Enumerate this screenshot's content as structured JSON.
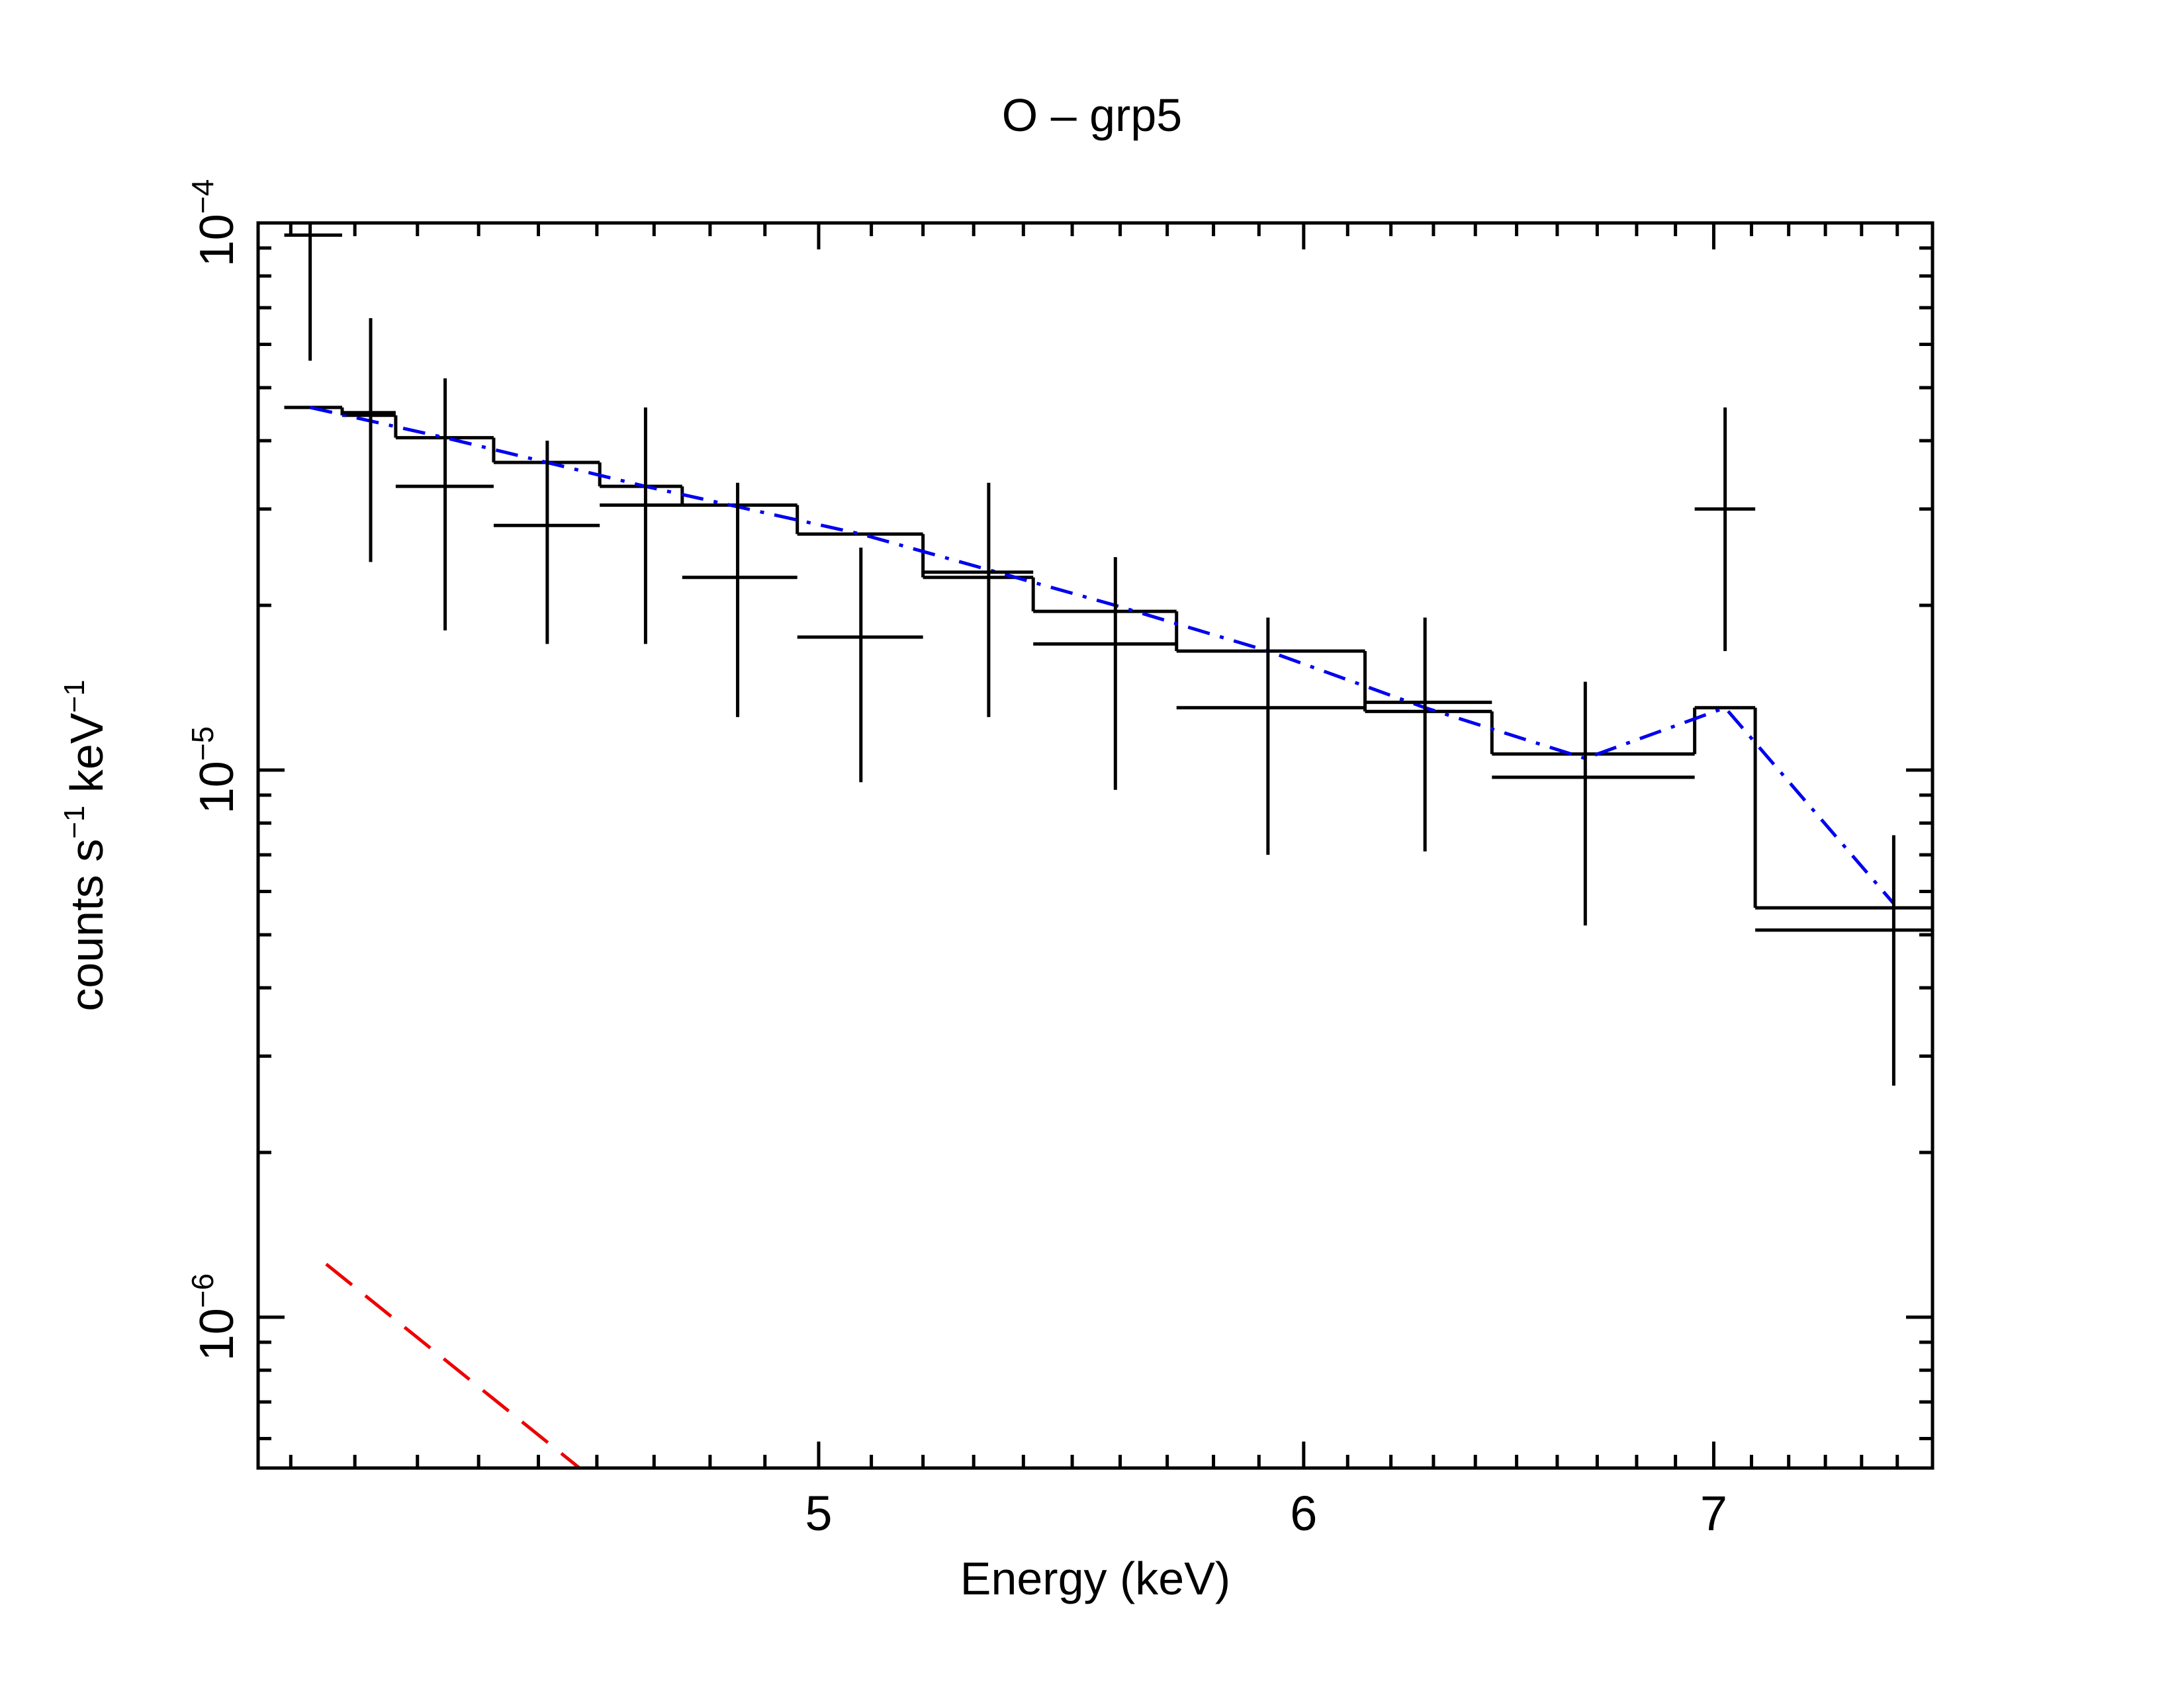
{
  "chart_data": {
    "type": "line",
    "title": "O – grp5",
    "xlabel": "Energy (keV)",
    "ylabel": {
      "parts": [
        "counts s",
        "−1",
        " keV",
        "−1"
      ]
    },
    "x_scale": "log",
    "y_scale": "log",
    "xlim": [
      4.05,
      7.6
    ],
    "ylim": [
      5.3e-07,
      0.0001
    ],
    "x_ticks": [
      {
        "value": 5,
        "label": "5"
      },
      {
        "value": 6,
        "label": "6"
      },
      {
        "value": 7,
        "label": "7"
      }
    ],
    "y_ticks": [
      {
        "value": 0.0001,
        "base": "10",
        "exp": "−4"
      },
      {
        "value": 1e-05,
        "base": "10",
        "exp": "−5"
      },
      {
        "value": 1e-06,
        "base": "10",
        "exp": "−6"
      }
    ],
    "data_points": {
      "name": "data",
      "color": "#000000",
      "points": [
        {
          "x": 4.13,
          "xlo": 4.09,
          "xhi": 4.18,
          "y": 9.5e-05,
          "ylo": 5.6e-05,
          "yhi": 0.0001
        },
        {
          "x": 4.225,
          "xlo": 4.18,
          "xhi": 4.265,
          "y": 4.5e-05,
          "ylo": 2.4e-05,
          "yhi": 6.7e-05
        },
        {
          "x": 4.345,
          "xlo": 4.265,
          "xhi": 4.425,
          "y": 3.3e-05,
          "ylo": 1.8e-05,
          "yhi": 5.2e-05
        },
        {
          "x": 4.515,
          "xlo": 4.425,
          "xhi": 4.605,
          "y": 2.8e-05,
          "ylo": 1.7e-05,
          "yhi": 4e-05
        },
        {
          "x": 4.685,
          "xlo": 4.605,
          "xhi": 4.75,
          "y": 3.05e-05,
          "ylo": 1.7e-05,
          "yhi": 4.6e-05
        },
        {
          "x": 4.85,
          "xlo": 4.75,
          "xhi": 4.96,
          "y": 2.25e-05,
          "ylo": 1.25e-05,
          "yhi": 3.35e-05
        },
        {
          "x": 5.08,
          "xlo": 4.96,
          "xhi": 5.2,
          "y": 1.75e-05,
          "ylo": 9.5e-06,
          "yhi": 2.55e-05
        },
        {
          "x": 5.33,
          "xlo": 5.2,
          "xhi": 5.42,
          "y": 2.3e-05,
          "ylo": 1.25e-05,
          "yhi": 3.35e-05
        },
        {
          "x": 5.59,
          "xlo": 5.42,
          "xhi": 5.72,
          "y": 1.7e-05,
          "ylo": 9.2e-06,
          "yhi": 2.45e-05
        },
        {
          "x": 5.92,
          "xlo": 5.72,
          "xhi": 6.14,
          "y": 1.3e-05,
          "ylo": 7e-06,
          "yhi": 1.9e-05
        },
        {
          "x": 6.28,
          "xlo": 6.14,
          "xhi": 6.44,
          "y": 1.33e-05,
          "ylo": 7.1e-06,
          "yhi": 1.9e-05
        },
        {
          "x": 6.67,
          "xlo": 6.44,
          "xhi": 6.95,
          "y": 9.7e-06,
          "ylo": 5.2e-06,
          "yhi": 1.45e-05
        },
        {
          "x": 7.03,
          "xlo": 6.95,
          "xhi": 7.11,
          "y": 3e-05,
          "ylo": 1.65e-05,
          "yhi": 4.6e-05
        },
        {
          "x": 7.49,
          "xlo": 7.11,
          "xhi": 7.88,
          "y": 5.1e-06,
          "ylo": 2.65e-06,
          "yhi": 7.6e-06
        }
      ]
    },
    "folded_model": {
      "name": "total model (histogram)",
      "color": "#000000",
      "style": "step",
      "bins": [
        {
          "xlo": 4.09,
          "xhi": 4.18,
          "y": 4.6e-05
        },
        {
          "xlo": 4.18,
          "xhi": 4.265,
          "y": 4.45e-05
        },
        {
          "xlo": 4.265,
          "xhi": 4.425,
          "y": 4.05e-05
        },
        {
          "xlo": 4.425,
          "xhi": 4.605,
          "y": 3.65e-05
        },
        {
          "xlo": 4.605,
          "xhi": 4.75,
          "y": 3.3e-05
        },
        {
          "xlo": 4.75,
          "xhi": 4.96,
          "y": 3.05e-05
        },
        {
          "xlo": 4.96,
          "xhi": 5.2,
          "y": 2.7e-05
        },
        {
          "xlo": 5.2,
          "xhi": 5.42,
          "y": 2.25e-05
        },
        {
          "xlo": 5.42,
          "xhi": 5.72,
          "y": 1.95e-05
        },
        {
          "xlo": 5.72,
          "xhi": 6.14,
          "y": 1.65e-05
        },
        {
          "xlo": 6.14,
          "xhi": 6.44,
          "y": 1.28e-05
        },
        {
          "xlo": 6.44,
          "xhi": 6.95,
          "y": 1.07e-05
        },
        {
          "xlo": 6.95,
          "xhi": 7.11,
          "y": 1.3e-05
        },
        {
          "xlo": 7.11,
          "xhi": 7.88,
          "y": 5.6e-06
        }
      ]
    },
    "components": [
      {
        "name": "component 1",
        "color": "#0000ee",
        "style": "dash-dot",
        "points": [
          {
            "x": 4.13,
            "y": 4.6e-05
          },
          {
            "x": 4.345,
            "y": 4.05e-05
          },
          {
            "x": 4.685,
            "y": 3.3e-05
          },
          {
            "x": 5.08,
            "y": 2.7e-05
          },
          {
            "x": 5.59,
            "y": 2e-05
          },
          {
            "x": 5.92,
            "y": 1.65e-05
          },
          {
            "x": 6.28,
            "y": 1.3e-05
          },
          {
            "x": 6.67,
            "y": 1.05e-05
          },
          {
            "x": 7.03,
            "y": 1.3e-05
          },
          {
            "x": 7.49,
            "y": 5.7e-06
          }
        ]
      },
      {
        "name": "component 2",
        "color": "#ee0000",
        "style": "dashed",
        "points": [
          {
            "x": 4.155,
            "y": 1.25e-06
          },
          {
            "x": 4.57,
            "y": 5.3e-07
          }
        ]
      }
    ]
  }
}
